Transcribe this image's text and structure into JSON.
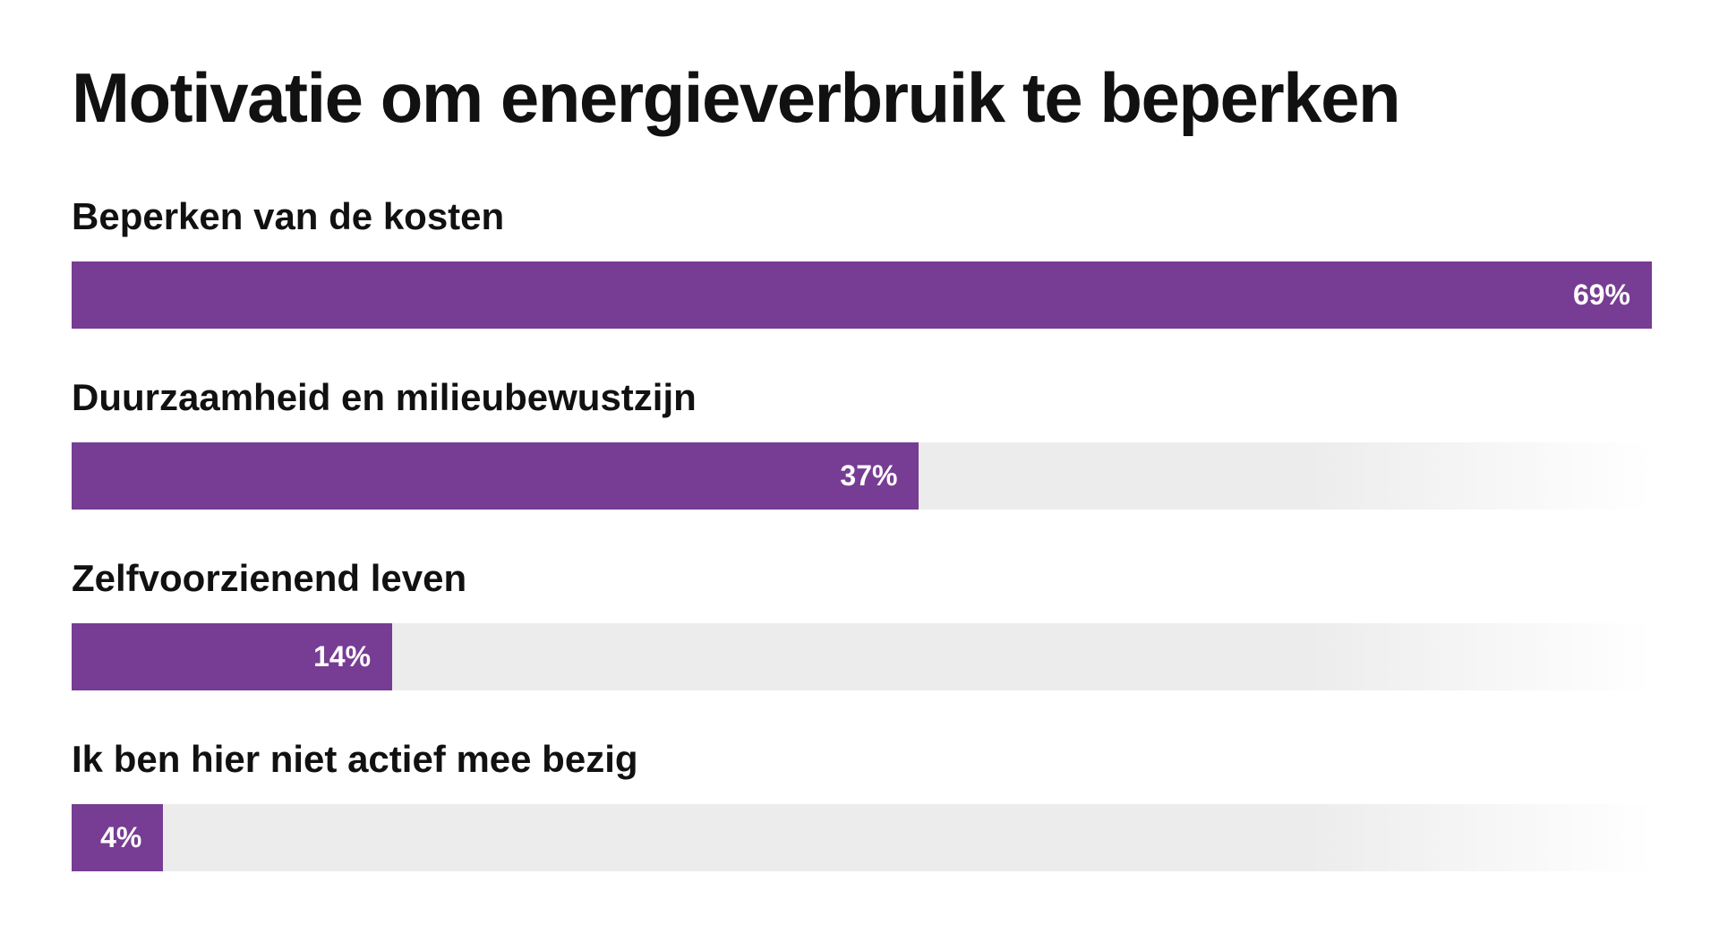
{
  "chart_data": {
    "type": "bar",
    "orientation": "horizontal",
    "title": "Motivatie om energieverbruik te beperken",
    "unit": "%",
    "categories": [
      "Beperken van de kosten",
      "Duurzaamheid en milieubewustzijn",
      "Zelfvoorzienend leven",
      "Ik ben hier niet actief mee bezig"
    ],
    "values": [
      69,
      37,
      14,
      4
    ],
    "value_labels": [
      "69%",
      "37%",
      "14%",
      "4%"
    ],
    "xlim": [
      0,
      69
    ],
    "grid": false,
    "legend": "none",
    "colors": {
      "bar": "#773c93",
      "track": "#ececec",
      "value_text": "#ffffff",
      "label_text": "#111111"
    }
  }
}
